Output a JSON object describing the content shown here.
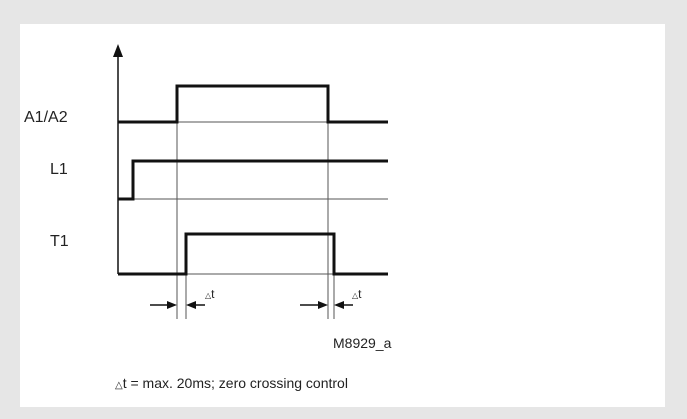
{
  "signals": [
    {
      "label": "A1/A2"
    },
    {
      "label": "L1"
    },
    {
      "label": "T1"
    }
  ],
  "delta_label": {
    "symbol": "△",
    "text": "t"
  },
  "reference_code": "M8929_a",
  "caption": {
    "symbol": "△",
    "text": "t = max. 20ms; zero crossing control"
  }
}
